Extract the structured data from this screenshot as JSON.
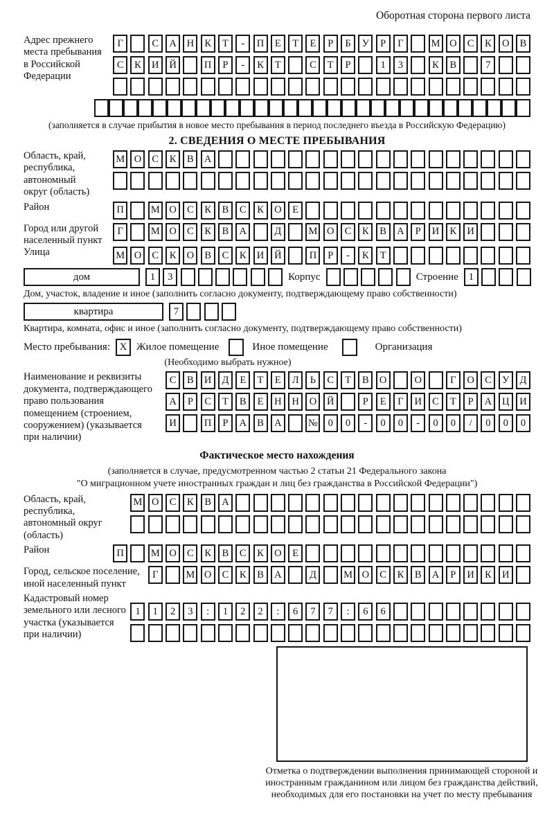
{
  "header": {
    "note": "Оборотная сторона первого листа"
  },
  "prev_address": {
    "label": "Адрес прежнего\nместа пребывания\nв Российской\nФедерации",
    "rows": [
      "Г САНКТ-ПЕТЕРБУРГ МОСКОВ",
      "СКИЙ ПР-КТ СТР 13 КВ 7  ",
      "                        "
    ],
    "row_full": "                              ",
    "caption": "(заполняется в случае прибытия в новое место пребывания в период последнего въезда в Российскую Федерацию)"
  },
  "section2": {
    "title": "2. СВЕДЕНИЯ О МЕСТЕ ПРЕБЫВАНИЯ",
    "oblast": {
      "label": "Область, край,\nреспублика,\nавтономный\nокруг (область)",
      "rows": [
        "МОСКВА                  ",
        "                        "
      ]
    },
    "raion": {
      "label": "Район",
      "cells": "П МОСКВСКОЕ             "
    },
    "gorod": {
      "label": "Город или другой\nнаселенный пункт",
      "cells": "Г МОСКВА Д МОСКВАРИКИ   "
    },
    "ulitsa": {
      "label": "Улица",
      "cells": "МОСКОВСКИЙ ПР-КТ        "
    },
    "dom_row": {
      "dom_label": "дом",
      "dom_cells": "13      ",
      "korpus_label": "Корпус",
      "korpus_cells": "     ",
      "stroenie_label": "Строение",
      "stroenie_cells": "1   "
    },
    "dom_caption": "Дом, участок, владение и иное (заполнить согласно документу, подтверждающему право собственности)",
    "kvartira_row": {
      "label": "квартира",
      "cells": "7   "
    },
    "kvartira_caption": "Квартира, комната, офис и иное (заполнить согласно документу, подтверждающему право собственности)",
    "mesto": {
      "label": "Место пребывания:",
      "options": [
        {
          "label": "Жилое помещение",
          "mark": "X"
        },
        {
          "label": "Иное помещение",
          "mark": ""
        },
        {
          "label": "Организация",
          "mark": ""
        }
      ],
      "note": "(Необходимо выбрать нужное)"
    },
    "doc": {
      "label": "Наименование и реквизиты\nдокумента, подтверждающего\nправо пользования\nпомещением (строением,\nсооружением) (указывается\nпри наличии)",
      "rows": [
        "СВИДЕТЕЛЬСТВО О ГОСУД",
        "АРСТВЕННОЙ РЕГИСТРАЦИ",
        "И ПРАВА №00-00-00/000"
      ]
    }
  },
  "fakt": {
    "title": "Фактическое место нахождения",
    "note1": "(заполняется в случае, предусмотренном частью 2 статьи 21 Федерального закона",
    "note2": "\"О миграционном учете иностранных граждан и лиц без гражданства в Российской Федерации\")",
    "oblast": {
      "label": "Область, край,\nреспублика,\nавтономный округ\n(область)",
      "rows": [
        "МОСКВА                 ",
        "                       "
      ]
    },
    "raion": {
      "label": "Район",
      "cells": "П МОСКВСКОЕ             "
    },
    "gorod": {
      "label": "Город, сельское поселение,\nиной населенный пункт",
      "cells": "Г МОСКВА Д МОСКВАРИКИ "
    },
    "kadastr": {
      "label": "Кадастровый номер\nземельного или лесного\nучастка (указывается\nпри наличии)",
      "rows": [
        "1123:122:677:66        ",
        "                       "
      ]
    },
    "stamp_caption": "Отметка о подтверждении выполнения принимающей стороной и иностранным гражданином или лицом без гражданства действий, необходимых для его постановки на учет по месту пребывания"
  }
}
